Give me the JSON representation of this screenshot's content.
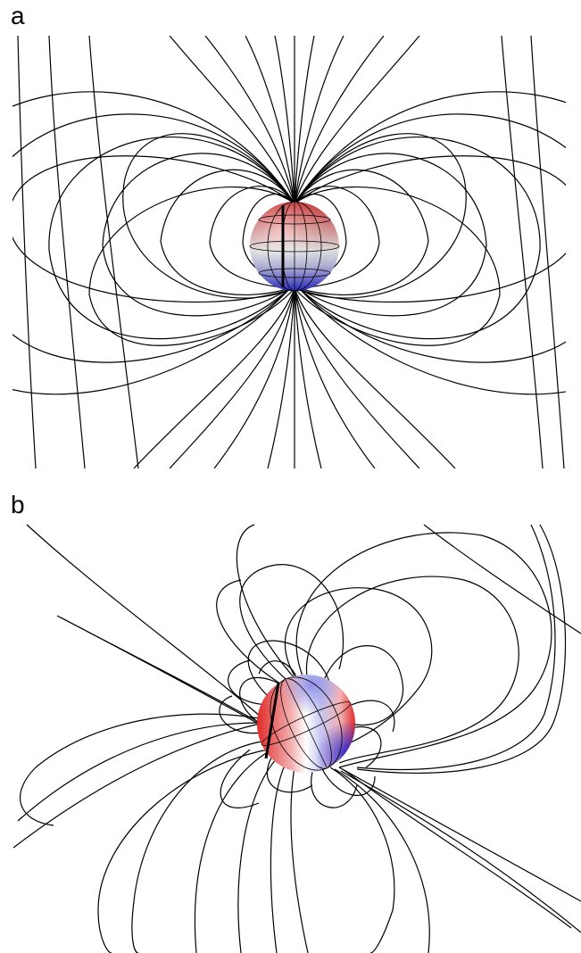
{
  "panels": [
    {
      "label": "a",
      "magnetic_axis": "aligned"
    },
    {
      "label": "b",
      "magnetic_axis": "tilted"
    }
  ],
  "colors": {
    "north_hemisphere": "#e33b3b",
    "south_hemisphere": "#3a3ad8",
    "equator": "#ffffff",
    "field_lines": "#000000"
  }
}
